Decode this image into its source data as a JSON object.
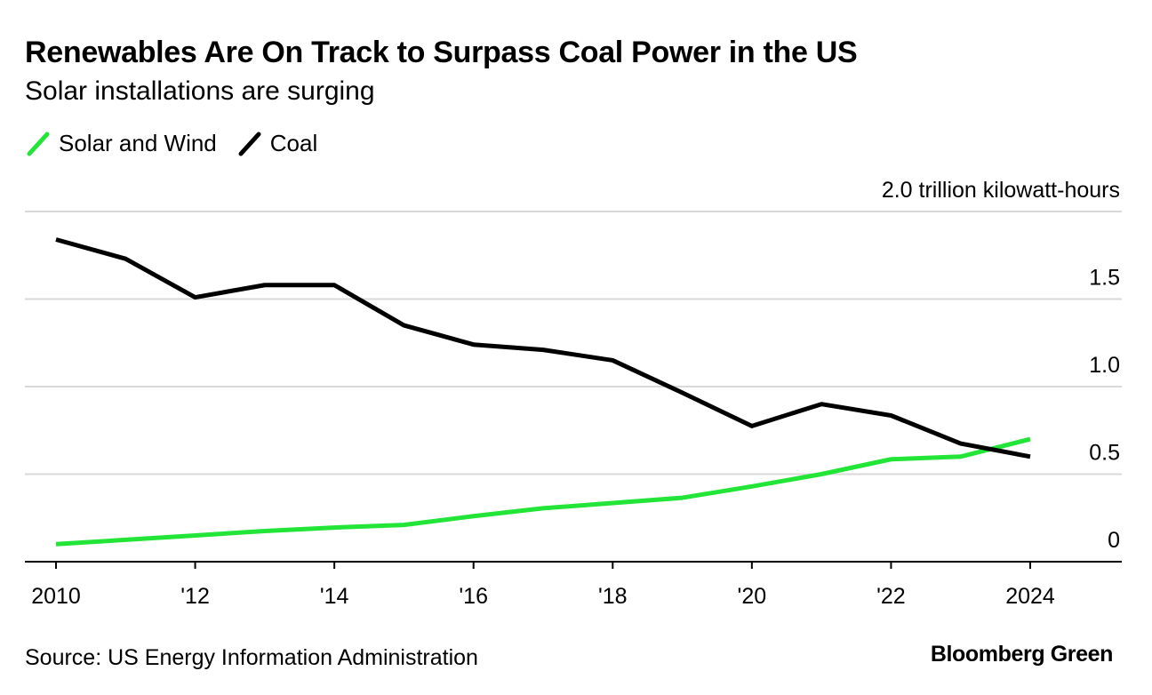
{
  "header": {
    "title": "Renewables Are On Track to Surpass Coal Power in the US",
    "subtitle": "Solar installations are surging"
  },
  "footer": {
    "source": "Source: US Energy Information Administration",
    "brand": "Bloomberg Green"
  },
  "chart_data": {
    "type": "line",
    "title": "Renewables Are On Track to Surpass Coal Power in the US",
    "subtitle": "Solar installations are surging",
    "unit_label": "2.0 trillion kilowatt-hours",
    "ylim": [
      0,
      2.0
    ],
    "y_ticks": [
      0,
      0.5,
      1.0,
      1.5,
      2.0
    ],
    "y_tick_labels": [
      "0",
      "0.5",
      "1.0",
      "1.5",
      "2.0 trillion kilowatt-hours"
    ],
    "x": [
      2010,
      2011,
      2012,
      2013,
      2014,
      2015,
      2016,
      2017,
      2018,
      2019,
      2020,
      2021,
      2022,
      2023,
      2024
    ],
    "x_ticks": [
      2010,
      2012,
      2014,
      2016,
      2018,
      2020,
      2022,
      2024
    ],
    "x_tick_labels": [
      "2010",
      "'12",
      "'14",
      "'16",
      "'18",
      "'20",
      "'22",
      "2024"
    ],
    "grid": true,
    "legend_position": "top-left",
    "series": [
      {
        "name": "Solar and Wind",
        "color": "#22e537",
        "values": [
          0.1,
          0.125,
          0.15,
          0.175,
          0.195,
          0.21,
          0.26,
          0.305,
          0.335,
          0.365,
          0.43,
          0.5,
          0.585,
          0.6,
          0.7
        ]
      },
      {
        "name": "Coal",
        "color": "#000000",
        "values": [
          1.84,
          1.73,
          1.51,
          1.58,
          1.58,
          1.35,
          1.24,
          1.21,
          1.15,
          0.965,
          0.775,
          0.9,
          0.835,
          0.675,
          0.6
        ]
      }
    ]
  }
}
